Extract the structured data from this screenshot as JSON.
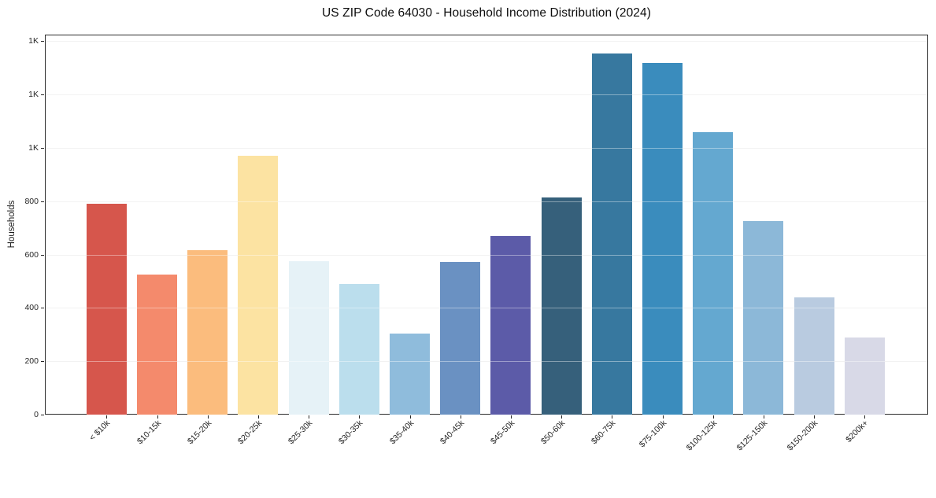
{
  "chart_data": {
    "type": "bar",
    "title": "US ZIP Code 64030 - Household Income Distribution (2024)",
    "xlabel": "",
    "ylabel": "Households",
    "categories": [
      "< $10k",
      "$10-15k",
      "$15-20k",
      "$20-25k",
      "$25-30k",
      "$30-35k",
      "$35-40k",
      "$40-45k",
      "$45-50k",
      "$50-60k",
      "$60-75k",
      "$75-100k",
      "$100-125k",
      "$125-150k",
      "$150-200k",
      "$200k+"
    ],
    "values": [
      790,
      525,
      618,
      970,
      575,
      490,
      305,
      573,
      670,
      815,
      1355,
      1320,
      1060,
      725,
      440,
      290
    ],
    "bar_colors": [
      "#d6564c",
      "#f48a6c",
      "#fbbc7d",
      "#fce3a2",
      "#e6f2f7",
      "#bbdeed",
      "#8fbcdc",
      "#6a91c2",
      "#5c5ba8",
      "#36607b",
      "#37789f",
      "#3a8cbd",
      "#64a8d0",
      "#8cb8d8",
      "#b9cbe0",
      "#d8d9e7"
    ],
    "ylim": [
      0,
      1425
    ],
    "yticks": {
      "values": [
        0,
        200,
        400,
        600,
        800,
        1000,
        1200,
        1400
      ],
      "labels": [
        "0",
        "200",
        "400",
        "600",
        "800",
        "1K",
        "1K",
        "1K"
      ]
    },
    "grid": "horizontal",
    "legend": "none",
    "colors": {
      "background": "#ffffff",
      "spine": "#2b2b2b",
      "grid": "#e9e9e9",
      "tick_text": "#262626",
      "title_text": "#0d0d0d"
    }
  }
}
